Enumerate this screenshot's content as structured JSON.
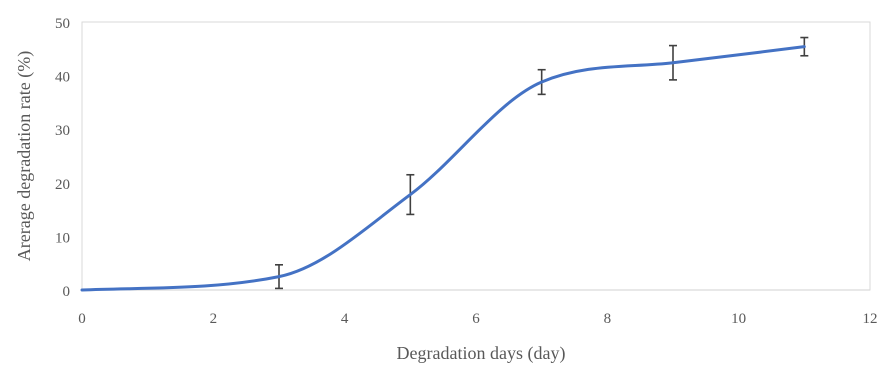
{
  "chart_data": {
    "type": "line",
    "xlabel": "Degradation days (day)",
    "ylabel": "Arerage degradation rate (%)",
    "xlim": [
      0,
      12
    ],
    "ylim": [
      0,
      50
    ],
    "x_ticks": [
      0,
      2,
      4,
      6,
      8,
      10,
      12
    ],
    "y_ticks": [
      0,
      10,
      20,
      30,
      40,
      50
    ],
    "grid": "none",
    "line_color": "#4472C4",
    "error_bar_color": "#404040",
    "axis_color": "#D9D9D9",
    "series": [
      {
        "x": [
          0,
          3,
          5,
          7,
          9,
          11
        ],
        "values": [
          0,
          2.5,
          17.8,
          38.8,
          42.4,
          45.4
        ],
        "error": [
          0,
          2.2,
          3.7,
          2.3,
          3.2,
          1.7
        ]
      }
    ]
  }
}
